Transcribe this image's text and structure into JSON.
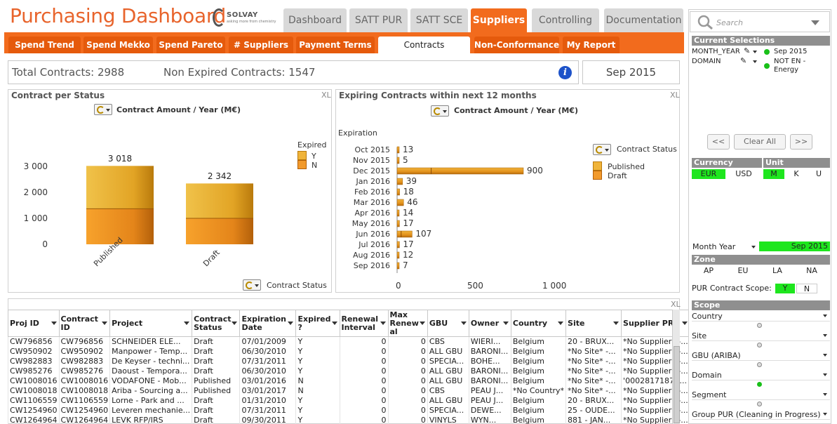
{
  "header": {
    "title": "Purchasing Dashboard",
    "logo_brand": "SOLVAY",
    "logo_tagline": "asking more from chemistry"
  },
  "main_tabs": [
    {
      "label": "Dashboard"
    },
    {
      "label": "SATT PUR"
    },
    {
      "label": "SATT SCE"
    },
    {
      "label": "Suppliers"
    },
    {
      "label": "Controlling"
    },
    {
      "label": "Documentation"
    }
  ],
  "sub_tabs": [
    {
      "label": "Spend Trend"
    },
    {
      "label": "Spend Mekko"
    },
    {
      "label": "Spend Pareto"
    },
    {
      "label": "# Suppliers"
    },
    {
      "label": "Payment Terms"
    },
    {
      "label": "Contracts"
    },
    {
      "label": "Non-Conformance"
    },
    {
      "label": "My Report"
    }
  ],
  "kpi": {
    "total": "Total Contracts: 2988",
    "non_expired": "Non Expired Contracts: 1547",
    "period": "Sep 2015",
    "info_icon": "info-icon"
  },
  "status_chart": {
    "title": "Contract per Status",
    "xl": "XL",
    "measure": "Contract Amount / Year (M€)",
    "dimension": "Contract Status",
    "legend_title": "Expired",
    "legend": [
      "Y",
      "N"
    ],
    "ticks": [
      "3 000",
      "2 000",
      "1 000",
      "0"
    ]
  },
  "expiry_chart": {
    "title": "Expiring Contracts within next 12 months",
    "xl": "XL",
    "measure": "Contract Amount / Year (M€)",
    "axis_label": "Expiration",
    "legend_title": "Contract Status",
    "legend": [
      "Published",
      "Draft"
    ],
    "ticks": [
      "0",
      "500",
      "1 000"
    ]
  },
  "chart_data": [
    {
      "type": "bar",
      "stacked": true,
      "categories": [
        "Published",
        "Draft"
      ],
      "series": [
        {
          "name": "Y",
          "values": [
            1650,
            1342
          ]
        },
        {
          "name": "N",
          "values": [
            1368,
            1000
          ]
        }
      ],
      "totals": [
        "3 018",
        "2 342"
      ],
      "ylim": [
        0,
        3300
      ]
    },
    {
      "type": "bar",
      "orientation": "horizontal",
      "categories": [
        "Oct 2015",
        "Nov 2015",
        "Dec 2015",
        "Jan 2016",
        "Feb 2016",
        "Mar 2016",
        "Apr 2016",
        "May 2016",
        "Jun 2016",
        "Jul 2016",
        "Aug 2016",
        "Sep 2016"
      ],
      "values": [
        13,
        5,
        900,
        39,
        18,
        46,
        14,
        17,
        107,
        17,
        12,
        7
      ],
      "labels": [
        "13",
        "5",
        "900",
        "39",
        "18",
        "46",
        "14",
        "17",
        "107",
        "17",
        "12",
        "7"
      ],
      "xlim": [
        0,
        1000
      ]
    }
  ],
  "table": {
    "xl": "XL",
    "columns": [
      "Proj ID",
      "Contract ID",
      "Project",
      "Contract Status",
      "Expiration Date",
      "Expired ?",
      "Renewal Interval",
      "Max Renew al",
      "GBU",
      "Owner",
      "Country",
      "Site",
      "Supplier PRS"
    ],
    "rows": [
      [
        "CW796856",
        "CW796856",
        "SCHNEIDER ELE...",
        "Draft",
        "07/01/2009",
        "Y",
        "0",
        "0",
        "CBS",
        "WIERI...",
        "Belgium",
        "20 - BRUX...",
        "*No Supplier* -..."
      ],
      [
        "CW950902",
        "CW950902",
        "Manpower - Temp...",
        "Draft",
        "06/30/2010",
        "Y",
        "0",
        "0",
        "ALL GBU",
        "BARONI...",
        "Belgium",
        "*No Site* -...",
        "*No Supplier* -..."
      ],
      [
        "CW982883",
        "CW982883",
        "De Keyser - techni...",
        "Draft",
        "07/31/2011",
        "Y",
        "0",
        "0",
        "SPECIA...",
        "BOHE...",
        "Belgium",
        "*No Site* -...",
        "*No Supplier* -..."
      ],
      [
        "CW985276",
        "CW985276",
        "Daoust - Tempora...",
        "Draft",
        "06/30/2010",
        "Y",
        "0",
        "0",
        "ALL GBU",
        "BARONI...",
        "Belgium",
        "*No Site* -...",
        "*No Supplier* -..."
      ],
      [
        "CW1008016",
        "CW1008016",
        "VODAFONE - Mob...",
        "Published",
        "03/01/2016",
        "N",
        "0",
        "0",
        "ALL GBU",
        "BARONI...",
        "Belgium",
        "*No Site* -...",
        "'0002817187- ..."
      ],
      [
        "CW1008018",
        "CW1008018",
        "Ariba - Sourcing a...",
        "Published",
        "03/01/2017",
        "N",
        "0",
        "0",
        "CBS",
        "PEAU J...",
        "*No Country*",
        "*No Site* -...",
        "*No Supplier* -..."
      ],
      [
        "CW1106559",
        "CW1106559",
        "Lorne - Park and ...",
        "Draft",
        "01/31/2010",
        "Y",
        "0",
        "0",
        "ALL GBU",
        "PEAU J...",
        "Belgium",
        "20 - BRUX...",
        "*No Supplier* -..."
      ],
      [
        "CW1254960",
        "CW1254960",
        "Leveren mechanie...",
        "Draft",
        "07/31/2011",
        "Y",
        "0",
        "0",
        "SPECIA...",
        "DEWE...",
        "Belgium",
        "25 - OUDE...",
        "*No Supplier* -..."
      ],
      [
        "CW1264964",
        "CW1264964",
        "LEVK RFP/IRS",
        "Draft",
        "09/30/2011",
        "Y",
        "0",
        "0",
        "VINYLS",
        "WYN...",
        "Belgium",
        "881 - JAN...",
        "*No Supplier* -..."
      ]
    ]
  },
  "sidebar": {
    "search_placeholder": "Search",
    "current_selections": "Current Selections",
    "selections": [
      {
        "field": "MONTH_YEAR",
        "value": "Sep 2015"
      },
      {
        "field": "DOMAIN",
        "value": "NOT EN - Energy"
      }
    ],
    "prev": "<<",
    "clear": "Clear All",
    "next": ">>",
    "currency": "Currency",
    "currency_opts": [
      "EUR",
      "USD"
    ],
    "unit": "Unit",
    "unit_opts": [
      "M",
      "K",
      "U"
    ],
    "month_year_label": "Month Year",
    "month_year_value": "Sep 2015",
    "zone": "Zone",
    "zone_opts": [
      "AP",
      "EU",
      "LA",
      "NA"
    ],
    "scope_label": "PUR Contract Scope:",
    "scope_opts": [
      "Y",
      "N"
    ],
    "scope": "Scope",
    "scope_items": [
      "Country",
      "Site",
      "GBU (ARIBA)",
      "Domain",
      "Segment",
      "Group PUR (Cleaning in Progress)"
    ]
  }
}
